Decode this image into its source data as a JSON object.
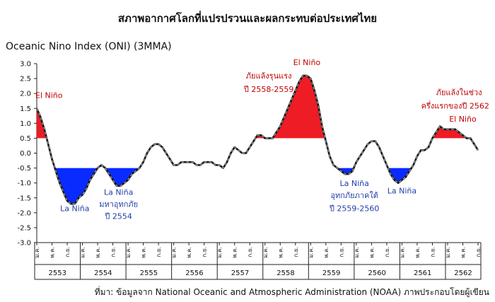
{
  "title": "สภาพอากาศโลกที่แปรปรวนและผลกระทบต่อประเทศไทย",
  "source": "ที่มา: ข้อมูลจาก National Oceanic and Atmospheric Administration (NOAA) ภาพประกอบโดยผู้เขียน",
  "colors": {
    "el_nino": "#ee1c24",
    "la_nina": "#0a2bff",
    "line": "#111111",
    "dash": "#9a9a9a"
  },
  "chart_data": {
    "type": "area",
    "ylabel": "Oceanic Nino Index (ONI) (3MMA)",
    "ylim": [
      -3.0,
      3.0
    ],
    "yticks": [
      "3.0",
      "2.5",
      "2.0",
      "1.5",
      "1.0",
      "0.5",
      "0.0",
      "-0.5",
      "-1.0",
      "-1.5",
      "-2.0",
      "-2.5",
      "-3.0"
    ],
    "thresholds": {
      "el_nino": 0.5,
      "la_nina": -0.5
    },
    "month_labels": [
      "ม.ค.",
      "พ.ค.",
      "ก.ย."
    ],
    "years": [
      "2553",
      "2554",
      "2555",
      "2556",
      "2557",
      "2558",
      "2559",
      "2560",
      "2561",
      "2562"
    ],
    "series": [
      {
        "values": [
          1.5,
          1.2,
          0.8,
          0.3,
          -0.2,
          -0.6,
          -1.0,
          -1.3,
          -1.6,
          -1.7,
          -1.7,
          -1.5,
          -1.4,
          -1.2,
          -0.9,
          -0.7,
          -0.5,
          -0.4,
          -0.5,
          -0.7,
          -0.9,
          -1.1,
          -1.1,
          -1.0,
          -0.9,
          -0.7,
          -0.6,
          -0.5,
          -0.3,
          0.0,
          0.2,
          0.3,
          0.3,
          0.2,
          0.0,
          -0.2,
          -0.4,
          -0.4,
          -0.3,
          -0.3,
          -0.3,
          -0.3,
          -0.4,
          -0.4,
          -0.3,
          -0.3,
          -0.3,
          -0.4,
          -0.4,
          -0.5,
          -0.3,
          0.0,
          0.2,
          0.1,
          0.0,
          0.0,
          0.2,
          0.4,
          0.6,
          0.6,
          0.5,
          0.5,
          0.5,
          0.7,
          0.9,
          1.2,
          1.5,
          1.8,
          2.1,
          2.4,
          2.6,
          2.6,
          2.5,
          2.1,
          1.6,
          0.9,
          0.4,
          -0.1,
          -0.4,
          -0.5,
          -0.6,
          -0.7,
          -0.7,
          -0.6,
          -0.3,
          -0.1,
          0.1,
          0.3,
          0.4,
          0.4,
          0.2,
          -0.1,
          -0.4,
          -0.7,
          -0.9,
          -1.0,
          -0.9,
          -0.8,
          -0.6,
          -0.4,
          -0.1,
          0.1,
          0.1,
          0.2,
          0.5,
          0.7,
          0.9,
          0.8,
          0.8,
          0.8,
          0.8,
          0.7,
          0.6,
          0.5,
          0.5,
          0.3,
          0.1
        ]
      }
    ],
    "annotations": [
      {
        "text": "El Niño",
        "x": 0,
        "y": 1.85,
        "kind": "el"
      },
      {
        "text": "La Niña",
        "x": 10,
        "y": -1.95,
        "kind": "la"
      },
      {
        "text": "La Niña",
        "x": 21.5,
        "y": -1.4,
        "kind": "la"
      },
      {
        "text": "มหาอุทกภัย",
        "x": 21.5,
        "y": -1.8,
        "kind": "la"
      },
      {
        "text": "ปี 2554",
        "x": 21.5,
        "y": -2.2,
        "kind": "la"
      },
      {
        "text": "ภัยแล้งรุนแรง",
        "x": 61,
        "y": 2.5,
        "kind": "el"
      },
      {
        "text": "ปี 2558-2559",
        "x": 61,
        "y": 2.05,
        "kind": "el"
      },
      {
        "text": "El Niño",
        "x": 71,
        "y": 2.95,
        "kind": "el"
      },
      {
        "text": "La Niña",
        "x": 83.5,
        "y": -1.1,
        "kind": "la"
      },
      {
        "text": "อุทกภัยภาคใต้",
        "x": 83.5,
        "y": -1.5,
        "kind": "la"
      },
      {
        "text": "ปี 2559-2560",
        "x": 83.5,
        "y": -1.95,
        "kind": "la"
      },
      {
        "text": "La Niña",
        "x": 96,
        "y": -1.35,
        "kind": "la"
      },
      {
        "text": "ภัยแล้งในช่วง",
        "x": 111,
        "y": 1.95,
        "kind": "el"
      },
      {
        "text": "ครึ่งแรกของปี 2562",
        "x": 110,
        "y": 1.5,
        "kind": "el"
      },
      {
        "text": "El Niño",
        "x": 112,
        "y": 1.05,
        "kind": "el"
      }
    ]
  }
}
